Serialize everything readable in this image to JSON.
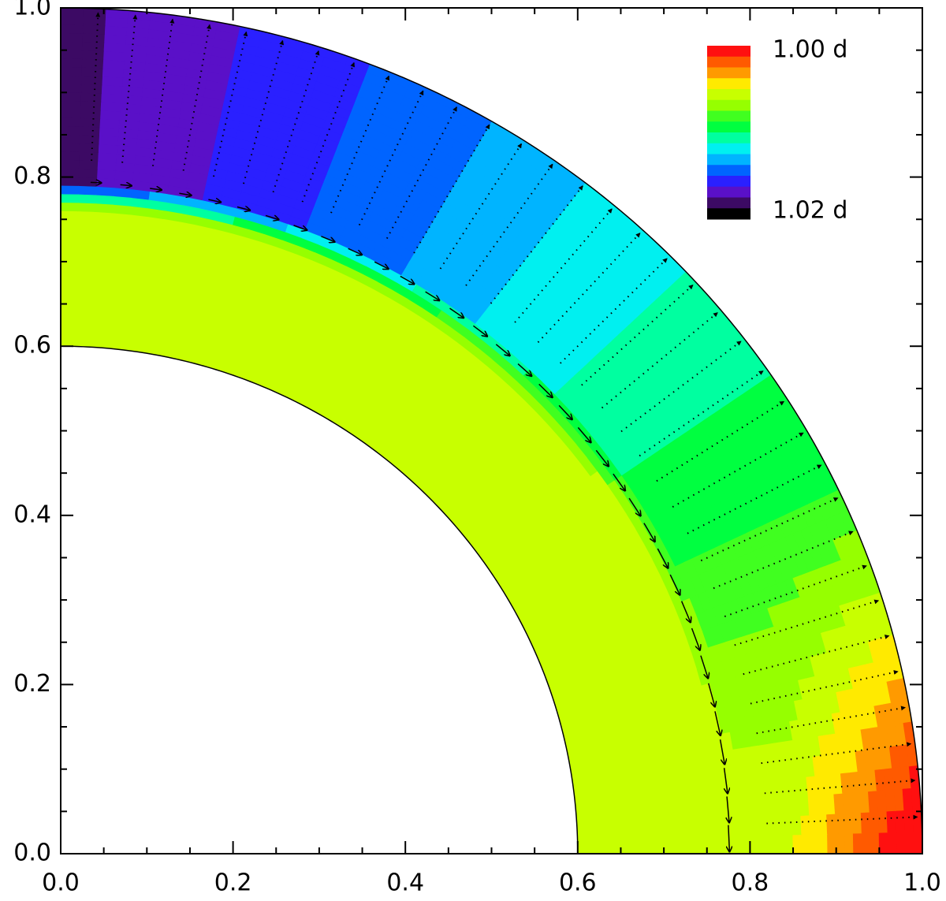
{
  "chart_data": {
    "type": "contour",
    "xlim": [
      0,
      1
    ],
    "ylim": [
      0,
      1
    ],
    "xticks": [
      {
        "value": 0,
        "label": "0.0"
      },
      {
        "value": 0.2,
        "label": "0.2"
      },
      {
        "value": 0.4,
        "label": "0.4"
      },
      {
        "value": 0.6,
        "label": "0.6"
      },
      {
        "value": 0.8,
        "label": "0.8"
      },
      {
        "value": 1,
        "label": "1.0"
      }
    ],
    "yticks": [
      {
        "value": 0,
        "label": "0.0"
      },
      {
        "value": 0.2,
        "label": "0.2"
      },
      {
        "value": 0.4,
        "label": "0.4"
      },
      {
        "value": 0.6,
        "label": "0.6"
      },
      {
        "value": 0.8,
        "label": "0.8"
      },
      {
        "value": 1,
        "label": "1.0"
      }
    ],
    "colorbar": {
      "colors": [
        "#ff1010",
        "#ff5a00",
        "#ff9a00",
        "#ffea00",
        "#c8ff00",
        "#96ff00",
        "#40ff20",
        "#00ff40",
        "#00ffa0",
        "#00f0f0",
        "#00b4ff",
        "#0064ff",
        "#2a20ff",
        "#5a10c8",
        "#3c0a64",
        "#000000"
      ],
      "labels": [
        {
          "value": 1.0,
          "label": "1.00 d"
        },
        {
          "value": 1.02,
          "label": "1.02 d"
        }
      ]
    }
  }
}
